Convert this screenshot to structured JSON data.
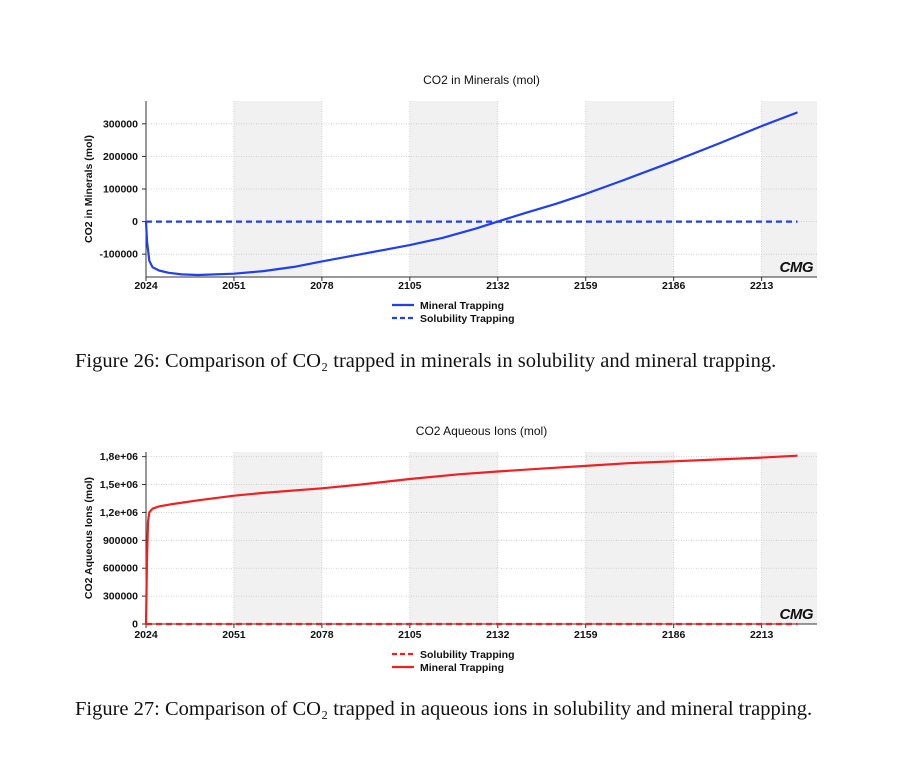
{
  "chart_data": [
    {
      "type": "line",
      "title": "CO2 in Minerals (mol)",
      "ylabel": "CO2 in Minerals (mol)",
      "xlabel": "",
      "xlim": [
        2024,
        2230
      ],
      "ylim": [
        -170000,
        370000
      ],
      "x_ticks": [
        "2024",
        "2051",
        "2078",
        "2105",
        "2132",
        "2159",
        "2186",
        "2213"
      ],
      "x_tick_values": [
        2024,
        2051,
        2078,
        2105,
        2132,
        2159,
        2186,
        2213
      ],
      "y_ticks": [
        "300000",
        "200000",
        "100000",
        "0",
        "-100000"
      ],
      "y_tick_values": [
        300000,
        200000,
        100000,
        0,
        -100000
      ],
      "watermark": "CMG",
      "series": [
        {
          "name": "Mineral Trapping",
          "color": "#1f3ff0",
          "dash": "solid",
          "x": [
            2024,
            2024.3,
            2025,
            2026,
            2028,
            2031,
            2035,
            2040,
            2051,
            2060,
            2070,
            2078,
            2090,
            2105,
            2115,
            2125,
            2132,
            2140,
            2150,
            2159,
            2170,
            2186,
            2200,
            2213,
            2224
          ],
          "y": [
            0,
            -60000,
            -120000,
            -140000,
            -150000,
            -157000,
            -162000,
            -164000,
            -160000,
            -152000,
            -138000,
            -122000,
            -100000,
            -72000,
            -50000,
            -22000,
            0,
            25000,
            55000,
            85000,
            125000,
            185000,
            240000,
            293000,
            335000
          ]
        },
        {
          "name": "Solubility Trapping",
          "color": "#1f3ff0",
          "dash": "dashed",
          "x": [
            2024,
            2224
          ],
          "y": [
            0,
            0
          ]
        }
      ],
      "legend": "bottom-center"
    },
    {
      "type": "line",
      "title": "CO2 Aqueous Ions (mol)",
      "ylabel": "CO2 Aqueous Ions (mol)",
      "xlabel": "",
      "xlim": [
        2024,
        2230
      ],
      "ylim": [
        0,
        1850000
      ],
      "x_ticks": [
        "2024",
        "2051",
        "2078",
        "2105",
        "2132",
        "2159",
        "2186",
        "2213"
      ],
      "x_tick_values": [
        2024,
        2051,
        2078,
        2105,
        2132,
        2159,
        2186,
        2213
      ],
      "y_ticks": [
        "1,8e+06",
        "1,5e+06",
        "1,2e+06",
        "900000",
        "600000",
        "300000",
        "0"
      ],
      "y_tick_values": [
        1800000,
        1500000,
        1200000,
        900000,
        600000,
        300000,
        0
      ],
      "watermark": "CMG",
      "series": [
        {
          "name": "Solubility Trapping",
          "color": "#f02020",
          "dash": "dashed",
          "x": [
            2024,
            2224
          ],
          "y": [
            0,
            0
          ]
        },
        {
          "name": "Mineral Trapping",
          "color": "#f02020",
          "dash": "solid",
          "x": [
            2024,
            2024.3,
            2024.6,
            2025,
            2026,
            2028,
            2032,
            2040,
            2051,
            2060,
            2078,
            2090,
            2105,
            2120,
            2132,
            2145,
            2159,
            2172,
            2186,
            2200,
            2213,
            2224
          ],
          "y": [
            0,
            700000,
            1100000,
            1200000,
            1240000,
            1265000,
            1290000,
            1330000,
            1380000,
            1410000,
            1460000,
            1500000,
            1560000,
            1610000,
            1640000,
            1670000,
            1700000,
            1730000,
            1750000,
            1770000,
            1790000,
            1810000
          ]
        }
      ],
      "legend": "bottom-center"
    }
  ],
  "captions": {
    "fig26": "Figure 26: Comparison of CO₂ trapped in minerals in solubility and mineral trapping.",
    "fig27": "Figure 27: Comparison of CO₂ trapped in aqueous ions in solubility and mineral trapping."
  }
}
